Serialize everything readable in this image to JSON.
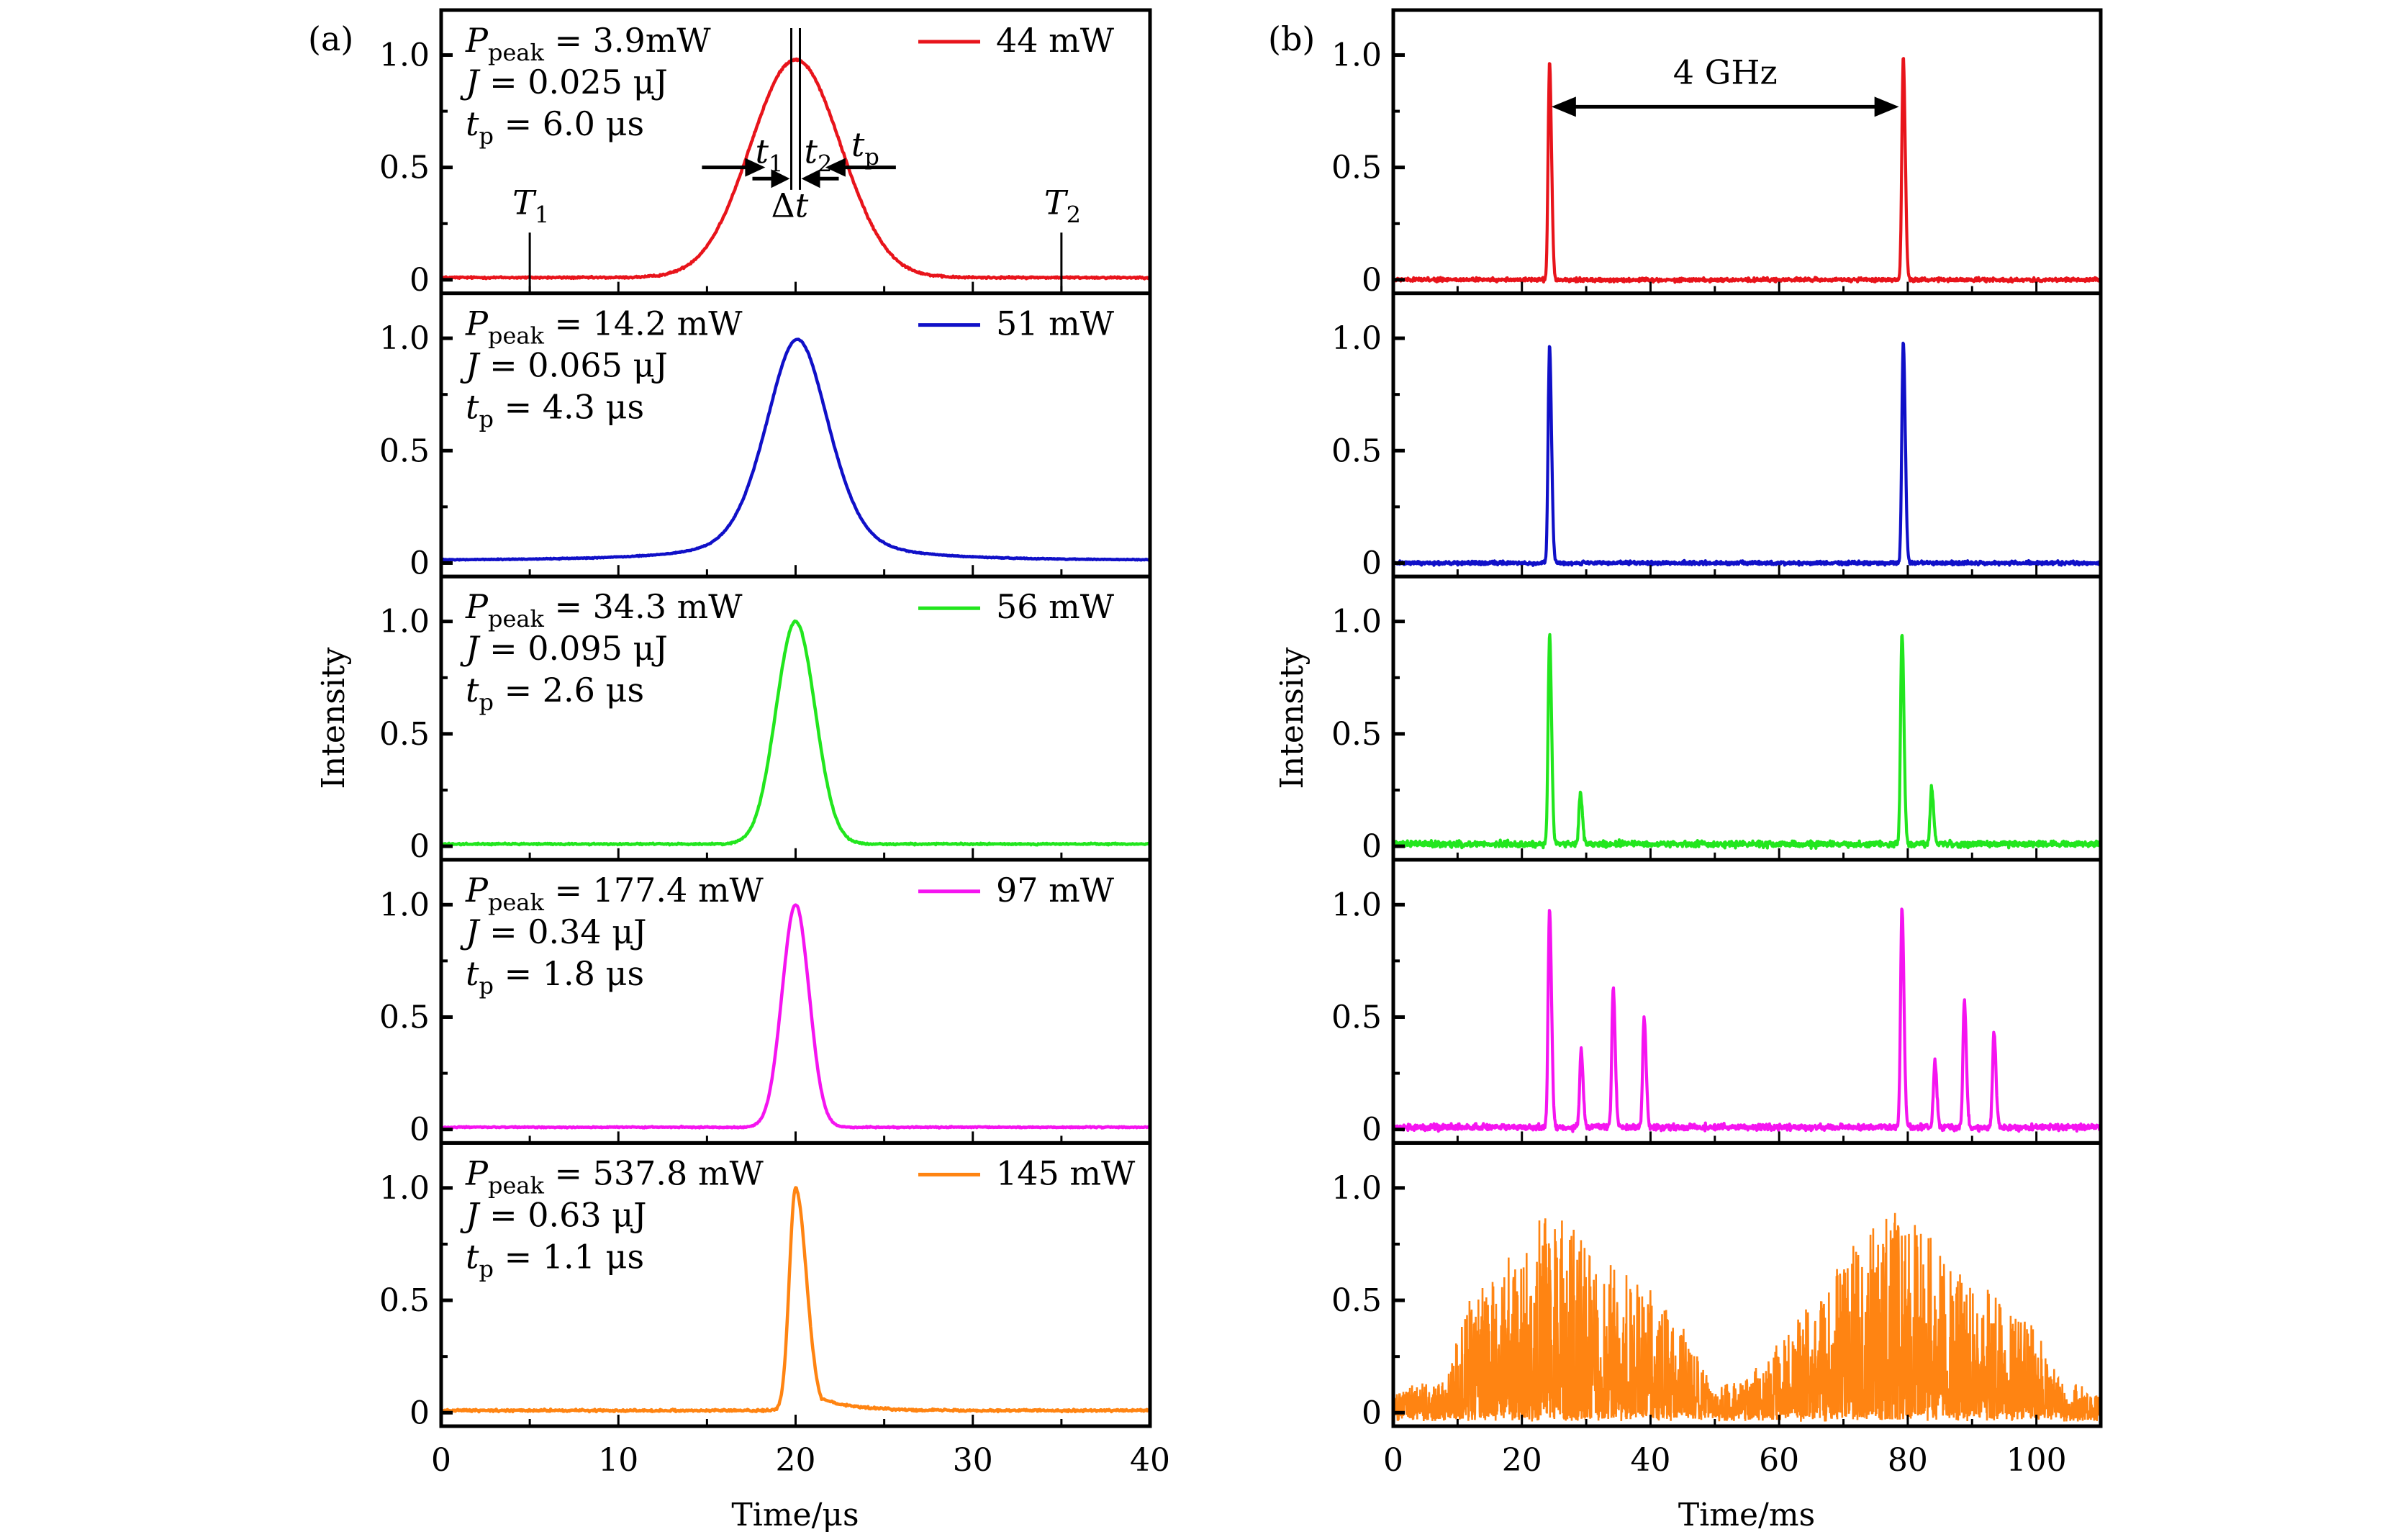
{
  "chart_data": [
    {
      "panel_label": "(a)",
      "type": "line",
      "xlabel": "Time/μs",
      "ylabel": "Intensity",
      "xlim": [
        0,
        40
      ],
      "ylim": [
        -0.06,
        1.2
      ],
      "xticks": [
        0,
        10,
        20,
        30,
        40
      ],
      "xtick_labels": [
        "0",
        "10",
        "20",
        "30",
        "40"
      ],
      "xminor": [
        5,
        15,
        25,
        35
      ],
      "yticks": [
        0,
        0.5,
        1.0
      ],
      "ytick_labels": [
        "0",
        "0.5",
        "1.0"
      ],
      "yminor": [
        0.25,
        0.75
      ],
      "grid": false,
      "subplots": [
        {
          "legend": "44 mW",
          "color": "#e8141b",
          "annotations": [
            {
              "sym": "P",
              "sub": "peak",
              "rest": " = 3.9mW"
            },
            {
              "sym": "J",
              "sub": "",
              "rest": " = 0.025 μJ"
            },
            {
              "sym": "t",
              "sub": "p",
              "rest": " = 6.0 μs"
            }
          ],
          "pulse": {
            "center": 20.0,
            "fwhm": 6.0,
            "peak": 0.98,
            "baseline": 0.01,
            "shape": "gauss",
            "noise": 0.006
          },
          "markers": {
            "T1": {
              "label": "T",
              "sub": "1",
              "x": 5
            },
            "T2": {
              "label": "T",
              "sub": "2",
              "x": 35
            },
            "t1": {
              "label": "t",
              "sub": "1"
            },
            "t2": {
              "label": "t",
              "sub": "2"
            },
            "tp": {
              "label": "t",
              "sub": "p"
            },
            "dt": {
              "label": "Δt"
            }
          }
        },
        {
          "legend": "51 mW",
          "color": "#1010c8",
          "annotations": [
            {
              "sym": "P",
              "sub": "peak",
              "rest": " = 14.2 mW"
            },
            {
              "sym": "J",
              "sub": "",
              "rest": " = 0.065 μJ"
            },
            {
              "sym": "t",
              "sub": "p",
              "rest": " = 4.3 μs"
            }
          ],
          "pulse": {
            "center": 20.1,
            "fwhm": 4.3,
            "peak": 0.995,
            "baseline": 0.01,
            "shape": "lorentz",
            "noise": 0.003
          }
        },
        {
          "legend": "56 mW",
          "color": "#22e61e",
          "annotations": [
            {
              "sym": "P",
              "sub": "peak",
              "rest": " = 34.3 mW"
            },
            {
              "sym": "J",
              "sub": "",
              "rest": " = 0.095 μJ"
            },
            {
              "sym": "t",
              "sub": "p",
              "rest": " = 2.6 μs"
            }
          ],
          "pulse": {
            "center": 20.0,
            "fwhm": 2.6,
            "peak": 1.0,
            "baseline": 0.01,
            "shape": "gauss",
            "noise": 0.005
          }
        },
        {
          "legend": "97 mW",
          "color": "#f514f0",
          "annotations": [
            {
              "sym": "P",
              "sub": "peak",
              "rest": " = 177.4 mW"
            },
            {
              "sym": "J",
              "sub": "",
              "rest": " = 0.34 μJ"
            },
            {
              "sym": "t",
              "sub": "p",
              "rest": " = 1.8 μs"
            }
          ],
          "pulse": {
            "center": 20.0,
            "fwhm": 1.8,
            "peak": 1.0,
            "baseline": 0.01,
            "shape": "gauss",
            "noise": 0.004
          }
        },
        {
          "legend": "145 mW",
          "color": "#ff8412",
          "annotations": [
            {
              "sym": "P",
              "sub": "peak",
              "rest": " = 537.8 mW"
            },
            {
              "sym": "J",
              "sub": "",
              "rest": " = 0.63 μJ"
            },
            {
              "sym": "t",
              "sub": "p",
              "rest": " = 1.1 μs"
            }
          ],
          "pulse": {
            "center": 20.0,
            "fwhm": 1.1,
            "peak": 1.0,
            "baseline": 0.01,
            "shape": "asym",
            "noise": 0.007
          }
        }
      ]
    },
    {
      "panel_label": "(b)",
      "type": "line",
      "xlabel": "Time/ms",
      "ylabel": "Intensity",
      "xlim": [
        0,
        110
      ],
      "ylim": [
        -0.06,
        1.2
      ],
      "xticks": [
        0,
        20,
        40,
        60,
        80,
        100
      ],
      "xtick_labels": [
        "0",
        "20",
        "40",
        "60",
        "80",
        "100"
      ],
      "xminor": [
        10,
        30,
        50,
        70,
        90
      ],
      "yticks": [
        0,
        0.5,
        1.0
      ],
      "ytick_labels": [
        "0",
        "0.5",
        "1.0"
      ],
      "yminor": [
        0.25,
        0.75
      ],
      "grid": false,
      "subplots": [
        {
          "color": "#e8141b",
          "spacing_annotation": {
            "label": "4 GHz",
            "from": 24.6,
            "to": 79.3,
            "y": 0.77
          },
          "baseline": 0.0,
          "noise": 0.012,
          "peaks": [
            {
              "x": 24.3,
              "h": 0.97
            },
            {
              "x": 79.3,
              "h": 0.99
            }
          ]
        },
        {
          "color": "#1010c8",
          "baseline": 0.0,
          "noise": 0.012,
          "peaks": [
            {
              "x": 24.3,
              "h": 0.97
            },
            {
              "x": 79.3,
              "h": 0.99
            }
          ]
        },
        {
          "color": "#22e61e",
          "baseline": 0.01,
          "noise": 0.02,
          "peaks": [
            {
              "x": 24.3,
              "h": 0.93
            },
            {
              "x": 29.1,
              "h": 0.23
            },
            {
              "x": 79.1,
              "h": 0.94
            },
            {
              "x": 83.7,
              "h": 0.25
            }
          ]
        },
        {
          "color": "#f514f0",
          "baseline": 0.01,
          "noise": 0.02,
          "peaks": [
            {
              "x": 24.3,
              "h": 0.98
            },
            {
              "x": 29.2,
              "h": 0.34
            },
            {
              "x": 34.2,
              "h": 0.62
            },
            {
              "x": 39.0,
              "h": 0.49
            },
            {
              "x": 79.1,
              "h": 0.98
            },
            {
              "x": 84.2,
              "h": 0.29
            },
            {
              "x": 88.8,
              "h": 0.56
            },
            {
              "x": 93.4,
              "h": 0.42
            }
          ]
        },
        {
          "color": "#ff8412",
          "chaotic": true,
          "envelope": [
            {
              "x": 0,
              "h": 0.12
            },
            {
              "x": 8,
              "h": 0.15
            },
            {
              "x": 12,
              "h": 0.55
            },
            {
              "x": 19,
              "h": 0.75
            },
            {
              "x": 24.5,
              "h": 0.92
            },
            {
              "x": 30,
              "h": 0.8
            },
            {
              "x": 35,
              "h": 0.65
            },
            {
              "x": 40,
              "h": 0.58
            },
            {
              "x": 45,
              "h": 0.4
            },
            {
              "x": 50,
              "h": 0.12
            },
            {
              "x": 57,
              "h": 0.22
            },
            {
              "x": 62,
              "h": 0.42
            },
            {
              "x": 70,
              "h": 0.72
            },
            {
              "x": 75,
              "h": 0.88
            },
            {
              "x": 78,
              "h": 0.96
            },
            {
              "x": 83,
              "h": 0.82
            },
            {
              "x": 88,
              "h": 0.62
            },
            {
              "x": 93,
              "h": 0.55
            },
            {
              "x": 100,
              "h": 0.4
            },
            {
              "x": 104,
              "h": 0.15
            },
            {
              "x": 110,
              "h": 0.12
            }
          ]
        }
      ]
    }
  ]
}
